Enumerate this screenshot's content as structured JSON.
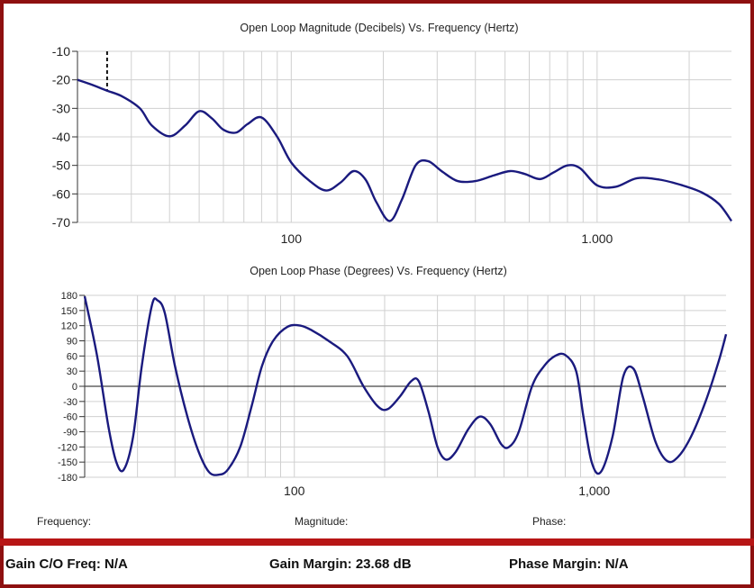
{
  "chart_data": [
    {
      "type": "line",
      "title": "Open Loop Magnitude (Decibels) Vs. Frequency (Hertz)",
      "xscale": "log",
      "xlim": [
        20,
        2750
      ],
      "ylim": [
        -70,
        -10
      ],
      "yticks": [
        -10,
        -20,
        -30,
        -40,
        -50,
        -60,
        -70
      ],
      "ytick_labels": [
        "-10",
        "-20",
        "-30",
        "-40",
        "-50",
        "-60",
        "-70"
      ],
      "xticks": [
        100,
        1000
      ],
      "xtick_labels": [
        "100",
        "1,000"
      ],
      "grid": true,
      "marker_x": 25,
      "series_color": "#1a1a7e",
      "x": [
        20,
        22,
        25,
        28,
        32,
        35,
        40,
        45,
        50,
        55,
        60,
        66,
        72,
        80,
        90,
        100,
        115,
        130,
        145,
        160,
        175,
        190,
        210,
        230,
        255,
        280,
        310,
        350,
        400,
        460,
        520,
        580,
        650,
        720,
        800,
        880,
        1000,
        1150,
        1350,
        1600,
        1900,
        2200,
        2500,
        2750
      ],
      "y": [
        -20,
        -21.5,
        -23.8,
        -25.8,
        -30,
        -36,
        -39.8,
        -36,
        -31,
        -33.5,
        -37.5,
        -38.5,
        -35.5,
        -33.2,
        -40,
        -49,
        -55.5,
        -58.8,
        -56,
        -52,
        -55,
        -63,
        -69.5,
        -62,
        -50,
        -48.5,
        -52,
        -55.5,
        -55.5,
        -53.5,
        -52,
        -53,
        -54.8,
        -52.5,
        -50,
        -51,
        -57,
        -57.5,
        -54.5,
        -55,
        -57,
        -59.5,
        -63.5,
        -69.5
      ]
    },
    {
      "type": "line",
      "title": "Open Loop Phase (Degrees) Vs. Frequency (Hertz)",
      "xscale": "log",
      "xlim": [
        20,
        2750
      ],
      "ylim": [
        -180,
        180
      ],
      "yticks": [
        180,
        150,
        120,
        90,
        60,
        30,
        0,
        -30,
        -60,
        -90,
        -120,
        -150,
        -180
      ],
      "ytick_labels": [
        "180",
        "150",
        "120",
        "90",
        "60",
        "30",
        "0",
        "-30",
        "-60",
        "-90",
        "-120",
        "-150",
        "-180"
      ],
      "xticks": [
        100,
        1000
      ],
      "xtick_labels": [
        "100",
        "1,000"
      ],
      "grid": true,
      "zero_line": true,
      "series_color": "#1a1a7e",
      "x": [
        20,
        22,
        24,
        25.5,
        27,
        29,
        31,
        33.5,
        35,
        37,
        40,
        44,
        48,
        52,
        56,
        60,
        66,
        72,
        78,
        85,
        95,
        105,
        115,
        130,
        150,
        170,
        190,
        205,
        225,
        245,
        260,
        280,
        300,
        320,
        345,
        380,
        415,
        450,
        490,
        520,
        560,
        620,
        680,
        740,
        800,
        870,
        920,
        980,
        1050,
        1150,
        1250,
        1350,
        1450,
        1600,
        1750,
        1900,
        2100,
        2350,
        2600,
        2750
      ],
      "y": [
        178,
        60,
        -80,
        -150,
        -165,
        -100,
        40,
        160,
        170,
        145,
        40,
        -60,
        -130,
        -170,
        -175,
        -165,
        -120,
        -40,
        40,
        90,
        118,
        120,
        110,
        90,
        60,
        0,
        -40,
        -45,
        -20,
        10,
        10,
        -50,
        -120,
        -145,
        -130,
        -85,
        -60,
        -75,
        -115,
        -120,
        -90,
        0,
        40,
        60,
        62,
        30,
        -60,
        -150,
        -170,
        -100,
        20,
        35,
        -20,
        -110,
        -148,
        -140,
        -100,
        -30,
        50,
        103
      ]
    }
  ],
  "readout": {
    "frequency_label": "Frequency:",
    "magnitude_label": "Magnitude:",
    "phase_label": "Phase:"
  },
  "status": {
    "gain_co_freq": "Gain C/O Freq: N/A",
    "gain_margin": "Gain Margin: 23.68 dB",
    "phase_margin": "Phase Margin: N/A"
  },
  "colors": {
    "frame_border": "#8e1010",
    "separator": "#b71515",
    "series": "#1a1a7e",
    "grid": "#d0d0d0"
  }
}
